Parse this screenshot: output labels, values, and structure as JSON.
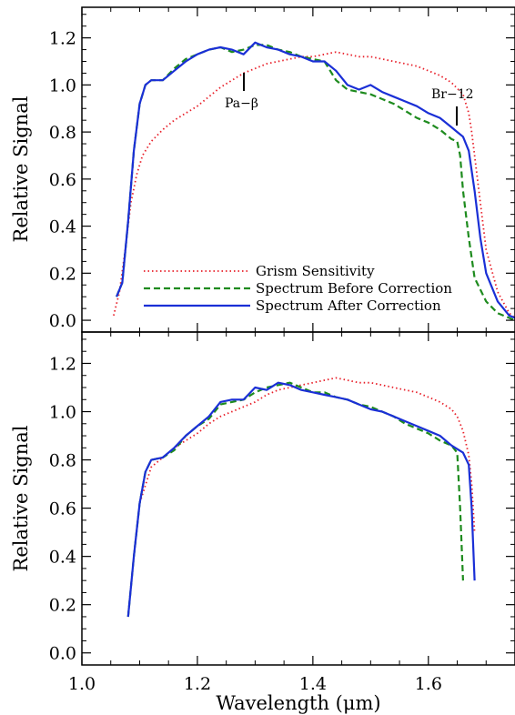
{
  "chart_data": [
    {
      "type": "line",
      "panel": "top",
      "xlabel": "",
      "ylabel": "Relative Signal",
      "xlim": [
        1.0,
        1.75
      ],
      "ylim": [
        -0.05,
        1.33
      ],
      "yticks": [
        0.0,
        0.2,
        0.4,
        0.6,
        0.8,
        1.0,
        1.2
      ],
      "ytick_labels": [
        "0.0",
        "0.2",
        "0.4",
        "0.6",
        "0.8",
        "1.0",
        "1.2"
      ],
      "xticks": [
        1.0,
        1.2,
        1.4,
        1.6
      ],
      "legend_placement": "bottom-center",
      "annotations": [
        {
          "text": "Pa−β",
          "x": 1.282,
          "y": 1.02
        },
        {
          "text": "Br−12",
          "x": 1.644,
          "y": 0.9
        }
      ],
      "series": [
        {
          "name": "Grism Sensitivity",
          "style": "dotted",
          "color": "#e8202a",
          "x": [
            1.055,
            1.065,
            1.075,
            1.085,
            1.095,
            1.105,
            1.12,
            1.14,
            1.16,
            1.18,
            1.2,
            1.22,
            1.24,
            1.26,
            1.28,
            1.3,
            1.32,
            1.34,
            1.36,
            1.38,
            1.4,
            1.42,
            1.44,
            1.46,
            1.48,
            1.5,
            1.52,
            1.54,
            1.56,
            1.58,
            1.6,
            1.62,
            1.64,
            1.66,
            1.67,
            1.675,
            1.68,
            1.69,
            1.7,
            1.72,
            1.74,
            1.75
          ],
          "y": [
            0.02,
            0.12,
            0.3,
            0.5,
            0.62,
            0.7,
            0.76,
            0.81,
            0.85,
            0.88,
            0.91,
            0.95,
            0.99,
            1.02,
            1.05,
            1.07,
            1.09,
            1.1,
            1.11,
            1.12,
            1.12,
            1.13,
            1.14,
            1.13,
            1.12,
            1.12,
            1.11,
            1.1,
            1.09,
            1.08,
            1.06,
            1.04,
            1.01,
            0.96,
            0.88,
            0.8,
            0.7,
            0.5,
            0.3,
            0.12,
            0.03,
            0.01
          ]
        },
        {
          "name": "Spectrum Before Correction",
          "style": "dashed",
          "color": "#1e8b1e",
          "x": [
            1.06,
            1.07,
            1.08,
            1.09,
            1.1,
            1.11,
            1.12,
            1.14,
            1.16,
            1.18,
            1.2,
            1.22,
            1.24,
            1.26,
            1.28,
            1.3,
            1.32,
            1.34,
            1.36,
            1.38,
            1.4,
            1.42,
            1.44,
            1.46,
            1.48,
            1.5,
            1.52,
            1.54,
            1.56,
            1.58,
            1.6,
            1.62,
            1.64,
            1.65,
            1.655,
            1.66,
            1.67,
            1.68,
            1.7,
            1.72,
            1.74,
            1.75
          ],
          "y": [
            0.1,
            0.16,
            0.42,
            0.72,
            0.92,
            1.0,
            1.02,
            1.02,
            1.07,
            1.11,
            1.13,
            1.15,
            1.16,
            1.14,
            1.15,
            1.17,
            1.17,
            1.15,
            1.14,
            1.12,
            1.11,
            1.1,
            1.02,
            0.98,
            0.97,
            0.96,
            0.94,
            0.92,
            0.89,
            0.86,
            0.84,
            0.81,
            0.77,
            0.76,
            0.7,
            0.55,
            0.35,
            0.18,
            0.08,
            0.03,
            0.01,
            0.0
          ]
        },
        {
          "name": "Spectrum After Correction",
          "style": "solid",
          "color": "#1a2fd6",
          "x": [
            1.06,
            1.07,
            1.08,
            1.09,
            1.1,
            1.11,
            1.12,
            1.14,
            1.16,
            1.18,
            1.2,
            1.22,
            1.24,
            1.26,
            1.28,
            1.3,
            1.32,
            1.34,
            1.36,
            1.38,
            1.4,
            1.42,
            1.44,
            1.46,
            1.48,
            1.5,
            1.52,
            1.54,
            1.56,
            1.58,
            1.6,
            1.62,
            1.64,
            1.65,
            1.66,
            1.67,
            1.68,
            1.69,
            1.7,
            1.72,
            1.74,
            1.75
          ],
          "y": [
            0.1,
            0.16,
            0.42,
            0.72,
            0.92,
            1.0,
            1.02,
            1.02,
            1.06,
            1.1,
            1.13,
            1.15,
            1.16,
            1.15,
            1.13,
            1.18,
            1.16,
            1.15,
            1.13,
            1.12,
            1.1,
            1.1,
            1.06,
            1.0,
            0.98,
            1.0,
            0.97,
            0.95,
            0.93,
            0.91,
            0.88,
            0.86,
            0.82,
            0.8,
            0.78,
            0.72,
            0.55,
            0.35,
            0.2,
            0.08,
            0.02,
            0.01
          ]
        }
      ]
    },
    {
      "type": "line",
      "panel": "bottom",
      "xlabel": "Wavelength (μm)",
      "ylabel": "Relative Signal",
      "xlim": [
        1.0,
        1.75
      ],
      "ylim": [
        -0.05,
        1.33
      ],
      "yticks": [
        0.0,
        0.2,
        0.4,
        0.6,
        0.8,
        1.0,
        1.2
      ],
      "ytick_labels": [
        "0.0",
        "0.2",
        "0.4",
        "0.6",
        "0.8",
        "1.0",
        "1.2"
      ],
      "xticks": [
        1.0,
        1.2,
        1.4,
        1.6
      ],
      "xtick_labels": [
        "1.0",
        "1.2",
        "1.4",
        "1.6"
      ],
      "series": [
        {
          "name": "Grism Sensitivity",
          "style": "dotted",
          "color": "#e8202a",
          "x": [
            1.08,
            1.09,
            1.1,
            1.12,
            1.14,
            1.16,
            1.18,
            1.2,
            1.22,
            1.24,
            1.26,
            1.28,
            1.3,
            1.32,
            1.34,
            1.36,
            1.38,
            1.4,
            1.42,
            1.44,
            1.46,
            1.48,
            1.5,
            1.52,
            1.54,
            1.56,
            1.58,
            1.6,
            1.62,
            1.64,
            1.65,
            1.66,
            1.67,
            1.675,
            1.68
          ],
          "y": [
            0.15,
            0.4,
            0.62,
            0.77,
            0.81,
            0.85,
            0.88,
            0.91,
            0.95,
            0.98,
            1.0,
            1.02,
            1.04,
            1.07,
            1.09,
            1.1,
            1.11,
            1.12,
            1.13,
            1.14,
            1.13,
            1.12,
            1.12,
            1.11,
            1.1,
            1.09,
            1.08,
            1.06,
            1.04,
            1.01,
            0.98,
            0.92,
            0.82,
            0.7,
            0.5
          ]
        },
        {
          "name": "Spectrum Before Correction",
          "style": "dashed",
          "color": "#1e8b1e",
          "x": [
            1.08,
            1.09,
            1.1,
            1.11,
            1.12,
            1.14,
            1.16,
            1.18,
            1.2,
            1.22,
            1.24,
            1.26,
            1.28,
            1.3,
            1.32,
            1.34,
            1.36,
            1.38,
            1.4,
            1.42,
            1.44,
            1.46,
            1.48,
            1.5,
            1.52,
            1.54,
            1.56,
            1.58,
            1.6,
            1.62,
            1.64,
            1.65,
            1.655,
            1.66
          ],
          "y": [
            0.15,
            0.4,
            0.62,
            0.75,
            0.8,
            0.81,
            0.84,
            0.9,
            0.94,
            0.97,
            1.03,
            1.04,
            1.05,
            1.08,
            1.1,
            1.11,
            1.12,
            1.1,
            1.08,
            1.08,
            1.06,
            1.05,
            1.03,
            1.02,
            1.0,
            0.98,
            0.95,
            0.93,
            0.91,
            0.88,
            0.86,
            0.83,
            0.6,
            0.3
          ]
        },
        {
          "name": "Spectrum After Correction",
          "style": "solid",
          "color": "#1a2fd6",
          "x": [
            1.08,
            1.09,
            1.1,
            1.11,
            1.12,
            1.14,
            1.16,
            1.18,
            1.2,
            1.22,
            1.24,
            1.26,
            1.28,
            1.3,
            1.32,
            1.34,
            1.36,
            1.38,
            1.4,
            1.42,
            1.44,
            1.46,
            1.48,
            1.5,
            1.52,
            1.54,
            1.56,
            1.58,
            1.6,
            1.62,
            1.64,
            1.66,
            1.67,
            1.675,
            1.68
          ],
          "y": [
            0.15,
            0.4,
            0.62,
            0.75,
            0.8,
            0.81,
            0.85,
            0.9,
            0.94,
            0.98,
            1.04,
            1.05,
            1.05,
            1.1,
            1.09,
            1.12,
            1.11,
            1.09,
            1.08,
            1.07,
            1.06,
            1.05,
            1.03,
            1.01,
            1.0,
            0.98,
            0.96,
            0.94,
            0.92,
            0.9,
            0.86,
            0.83,
            0.78,
            0.6,
            0.3
          ]
        }
      ]
    }
  ]
}
